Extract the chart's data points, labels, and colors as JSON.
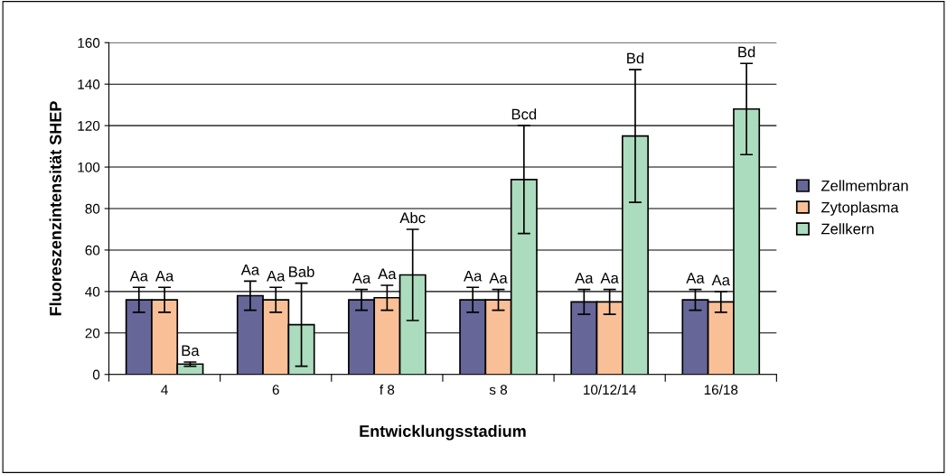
{
  "chart_data": {
    "type": "bar",
    "xlabel": "Entwicklungsstadium",
    "ylabel": "Fluoreszenzintensität SHEP",
    "categories": [
      "4",
      "6",
      "f 8",
      "s 8",
      "10/12/14",
      "16/18"
    ],
    "series": [
      {
        "name": "Zellmembran",
        "color": "#666699",
        "values": [
          36,
          38,
          36,
          36,
          35,
          36
        ],
        "errors": [
          6,
          7,
          5,
          6,
          6,
          5
        ]
      },
      {
        "name": "Zytoplasma",
        "color": "#f9c098",
        "values": [
          36,
          36,
          37,
          36,
          35,
          35
        ],
        "errors": [
          6,
          6,
          6,
          5,
          6,
          5
        ]
      },
      {
        "name": "Zellkern",
        "color": "#acdcbe",
        "values": [
          5,
          24,
          48,
          94,
          115,
          128
        ],
        "errors": [
          1,
          20,
          22,
          26,
          32,
          22
        ]
      }
    ],
    "annotations": [
      "Aa",
      "Aa",
      "Aa",
      "Aa",
      "Aa",
      "Aa",
      "Aa",
      "Aa",
      "Aa",
      "Aa",
      "Aa",
      "Aa",
      "Ba",
      "Bab",
      "Abc",
      "Bcd",
      "Bd",
      "Bd"
    ],
    "ylim": [
      0,
      160
    ],
    "yticks": [
      0,
      20,
      40,
      60,
      80,
      100,
      120,
      140,
      160
    ],
    "grid": "y",
    "legend": "right"
  }
}
